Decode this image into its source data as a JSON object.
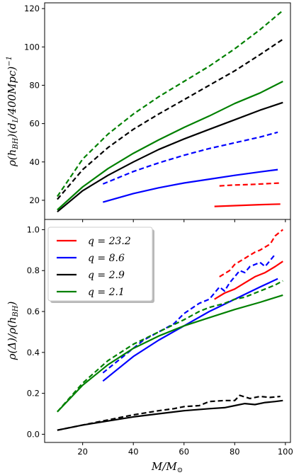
{
  "chart_data": [
    {
      "type": "line",
      "xlabel": "",
      "ylabel": "ρ(h_BH)(d_L/400Mpc)^-1",
      "xlim": [
        5,
        102
      ],
      "ylim": [
        10,
        123
      ],
      "xticks": [],
      "yticks": [
        20,
        40,
        60,
        80,
        100,
        120
      ],
      "ytick_labels": [
        "20",
        "40",
        "60",
        "80",
        "100",
        "120"
      ],
      "grid": false,
      "series": [
        {
          "color": "#ff0000",
          "style": "solid",
          "x": [
            72,
            80,
            90,
            98
          ],
          "y": [
            16.8,
            17.2,
            17.7,
            18.0
          ]
        },
        {
          "color": "#ff0000",
          "style": "dashed",
          "x": [
            74,
            80,
            86,
            92,
            98
          ],
          "y": [
            27.5,
            28.0,
            28.2,
            28.6,
            29.0
          ]
        },
        {
          "color": "#0000ff",
          "style": "solid",
          "x": [
            28,
            40,
            50,
            60,
            70,
            80,
            90,
            97
          ],
          "y": [
            19.0,
            23.5,
            26.5,
            29.0,
            31.0,
            33.0,
            34.8,
            36.0
          ]
        },
        {
          "color": "#0000ff",
          "style": "dashed",
          "x": [
            28,
            40,
            50,
            60,
            70,
            80,
            90,
            97
          ],
          "y": [
            28.5,
            35.0,
            39.5,
            43.5,
            47.0,
            50.0,
            53.0,
            55.5
          ]
        },
        {
          "color": "#000000",
          "style": "solid",
          "x": [
            10,
            20,
            30,
            40,
            50,
            60,
            70,
            80,
            90,
            99
          ],
          "y": [
            14.0,
            25.0,
            33.0,
            40.0,
            46.5,
            52.0,
            57.0,
            62.0,
            67.0,
            71.0
          ]
        },
        {
          "color": "#000000",
          "style": "dashed",
          "x": [
            10,
            20,
            30,
            40,
            50,
            60,
            70,
            80,
            90,
            99
          ],
          "y": [
            20.5,
            36.0,
            47.5,
            57.0,
            65.0,
            72.5,
            80.0,
            87.5,
            96.0,
            104.0
          ]
        },
        {
          "color": "#008000",
          "style": "solid",
          "x": [
            10,
            20,
            30,
            40,
            50,
            60,
            70,
            80,
            90,
            99
          ],
          "y": [
            15.0,
            27.0,
            36.5,
            44.5,
            51.5,
            58.0,
            64.0,
            70.5,
            76.0,
            82.0
          ]
        },
        {
          "color": "#008000",
          "style": "dashed",
          "x": [
            10,
            20,
            30,
            40,
            50,
            60,
            70,
            80,
            90,
            99
          ],
          "y": [
            22.0,
            41.5,
            54.5,
            65.0,
            74.0,
            82.0,
            90.0,
            99.0,
            109.0,
            119.0
          ]
        }
      ]
    },
    {
      "type": "line",
      "xlabel": "M/M_⊙",
      "ylabel": "ρ(Δ)/ρ(h_BH)",
      "xlim": [
        5,
        102
      ],
      "ylim": [
        -0.04,
        1.05
      ],
      "xticks": [
        20,
        40,
        60,
        80,
        100
      ],
      "xtick_labels": [
        "20",
        "40",
        "60",
        "80",
        "100"
      ],
      "yticks": [
        0.0,
        0.2,
        0.4,
        0.6,
        0.8,
        1.0
      ],
      "ytick_labels": [
        "0.0",
        "0.2",
        "0.4",
        "0.6",
        "0.8",
        "1.0"
      ],
      "grid": false,
      "legend": {
        "placement": "upper-left",
        "entries": [
          {
            "label": "q = 23.2",
            "color": "#ff0000"
          },
          {
            "label": "q = 8.6",
            "color": "#0000ff"
          },
          {
            "label": "q = 2.9",
            "color": "#000000"
          },
          {
            "label": "q = 2.1",
            "color": "#008000"
          }
        ]
      },
      "series": [
        {
          "color": "#ff0000",
          "style": "solid",
          "x": [
            72,
            76,
            80,
            84,
            88,
            92,
            96,
            99
          ],
          "y": [
            0.66,
            0.69,
            0.71,
            0.74,
            0.77,
            0.79,
            0.82,
            0.845
          ]
        },
        {
          "color": "#ff0000",
          "style": "dashed",
          "x": [
            74,
            78,
            80,
            84,
            88,
            90,
            94,
            96,
            99
          ],
          "y": [
            0.77,
            0.8,
            0.83,
            0.86,
            0.89,
            0.9,
            0.93,
            0.97,
            1.0
          ]
        },
        {
          "color": "#0000ff",
          "style": "solid",
          "x": [
            28,
            40,
            50,
            60,
            70,
            80,
            90,
            97
          ],
          "y": [
            0.26,
            0.38,
            0.46,
            0.53,
            0.6,
            0.66,
            0.72,
            0.76
          ]
        },
        {
          "color": "#0000ff",
          "style": "dashed",
          "x": [
            28,
            36,
            44,
            50,
            56,
            60,
            66,
            70,
            74,
            76,
            78,
            80,
            82,
            84,
            86,
            88,
            90,
            92,
            94,
            96
          ],
          "y": [
            0.3,
            0.38,
            0.46,
            0.5,
            0.54,
            0.59,
            0.64,
            0.66,
            0.72,
            0.7,
            0.74,
            0.77,
            0.8,
            0.79,
            0.82,
            0.83,
            0.84,
            0.82,
            0.85,
            0.88
          ]
        },
        {
          "color": "#000000",
          "style": "solid",
          "x": [
            10,
            20,
            30,
            40,
            50,
            60,
            70,
            76,
            80,
            84,
            88,
            92,
            96,
            99
          ],
          "y": [
            0.02,
            0.045,
            0.065,
            0.085,
            0.1,
            0.115,
            0.125,
            0.13,
            0.14,
            0.15,
            0.145,
            0.155,
            0.16,
            0.165
          ]
        },
        {
          "color": "#000000",
          "style": "dashed",
          "x": [
            10,
            20,
            30,
            40,
            50,
            56,
            60,
            66,
            70,
            76,
            80,
            82,
            86,
            90,
            94,
            98
          ],
          "y": [
            0.02,
            0.045,
            0.07,
            0.095,
            0.115,
            0.125,
            0.135,
            0.14,
            0.16,
            0.165,
            0.165,
            0.19,
            0.175,
            0.185,
            0.18,
            0.185
          ]
        },
        {
          "color": "#008000",
          "style": "solid",
          "x": [
            10,
            20,
            30,
            40,
            50,
            60,
            70,
            80,
            90,
            99
          ],
          "y": [
            0.11,
            0.24,
            0.34,
            0.42,
            0.48,
            0.53,
            0.57,
            0.61,
            0.645,
            0.68
          ]
        },
        {
          "color": "#008000",
          "style": "dashed",
          "x": [
            10,
            20,
            30,
            40,
            50,
            60,
            66,
            70,
            76,
            80,
            84,
            88,
            92,
            96,
            99
          ],
          "y": [
            0.11,
            0.25,
            0.36,
            0.44,
            0.5,
            0.56,
            0.6,
            0.62,
            0.64,
            0.66,
            0.67,
            0.69,
            0.71,
            0.73,
            0.75
          ]
        }
      ]
    }
  ]
}
